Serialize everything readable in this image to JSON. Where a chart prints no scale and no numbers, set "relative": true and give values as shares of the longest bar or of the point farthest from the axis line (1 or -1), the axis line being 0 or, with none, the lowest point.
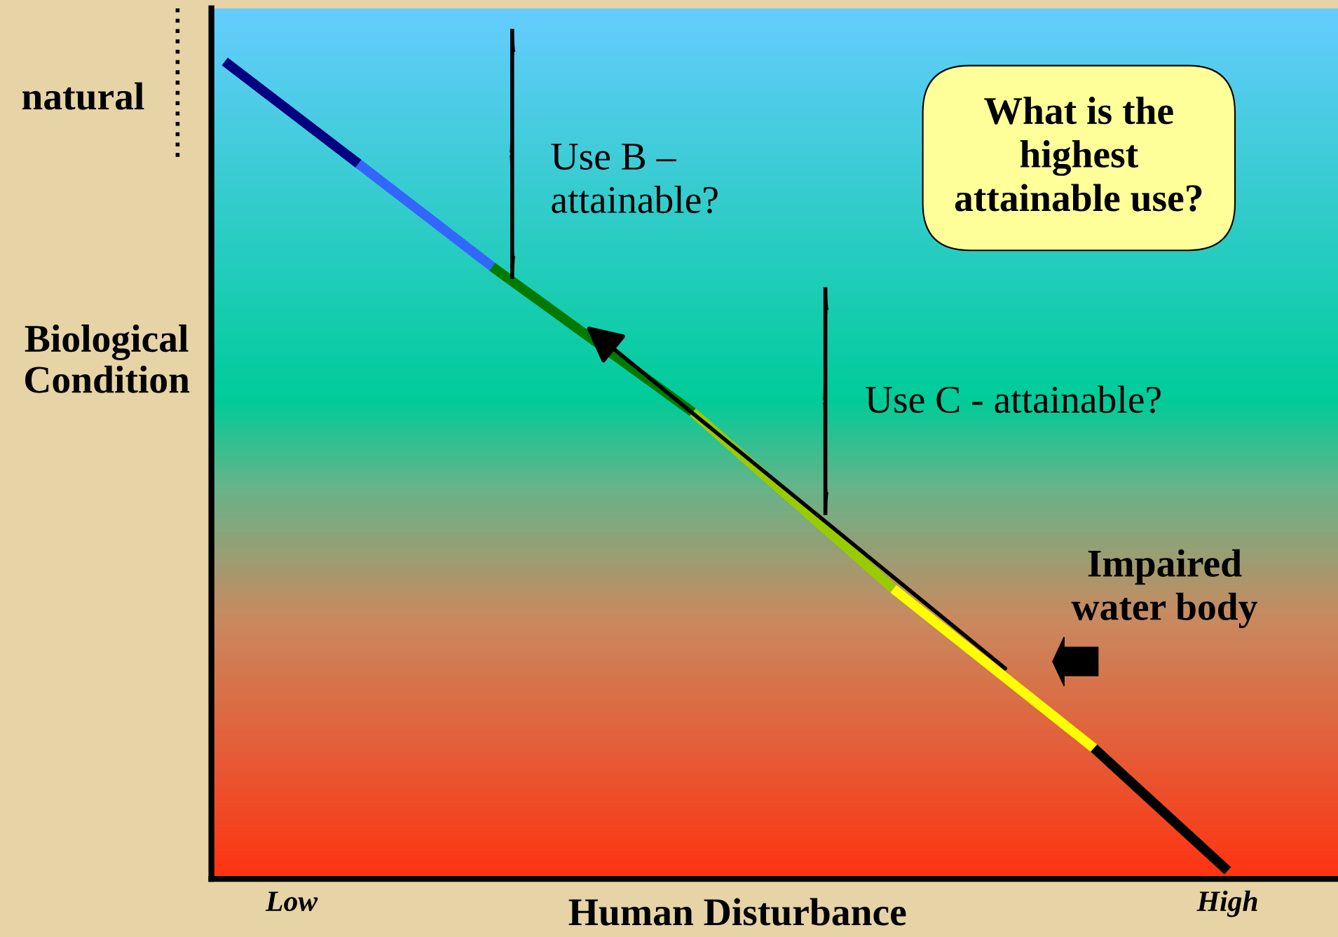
{
  "chart_data": {
    "type": "line",
    "relative": true,
    "xlabel": "Human Disturbance",
    "ylabel": "Biological\nCondition",
    "categories": [
      null,
      "Low",
      null,
      null,
      null,
      null,
      null,
      null,
      null,
      null,
      null,
      null,
      null,
      null,
      null,
      "High"
    ],
    "series": [
      {
        "color": "#000080",
        "values": [
          1.0,
          null,
          0.875,
          null,
          null,
          null,
          null,
          null,
          null,
          null,
          null,
          null,
          null,
          null,
          null,
          null
        ]
      },
      {
        "color": "#3366ff",
        "values": [
          null,
          null,
          0.875,
          null,
          0.749,
          null,
          null,
          null,
          null,
          null,
          null,
          null,
          null,
          null,
          null,
          null
        ]
      },
      {
        "color": "#007a00",
        "values": [
          null,
          null,
          null,
          null,
          0.749,
          null,
          null,
          0.571,
          null,
          null,
          null,
          null,
          null,
          null,
          null,
          null
        ]
      },
      {
        "color": "#99cc00",
        "values": [
          null,
          null,
          null,
          null,
          null,
          null,
          null,
          0.571,
          null,
          null,
          0.355,
          null,
          null,
          null,
          null,
          null
        ]
      },
      {
        "color": "#ffff00",
        "values": [
          null,
          null,
          null,
          null,
          null,
          null,
          null,
          null,
          null,
          null,
          0.355,
          null,
          null,
          0.16,
          null,
          null
        ]
      },
      {
        "color": "#000000",
        "values": [
          null,
          null,
          null,
          null,
          null,
          null,
          null,
          null,
          null,
          null,
          null,
          null,
          null,
          0.16,
          null,
          0.01
        ]
      }
    ],
    "annotations": [
      "natural",
      "Use B –\nattainable?",
      "Use C - attainable?",
      "What is the\nhighest\nattainable use?",
      "Impaired\nwater body"
    ],
    "grid": false,
    "legend": false,
    "line_style": "solid",
    "marker": "none"
  }
}
